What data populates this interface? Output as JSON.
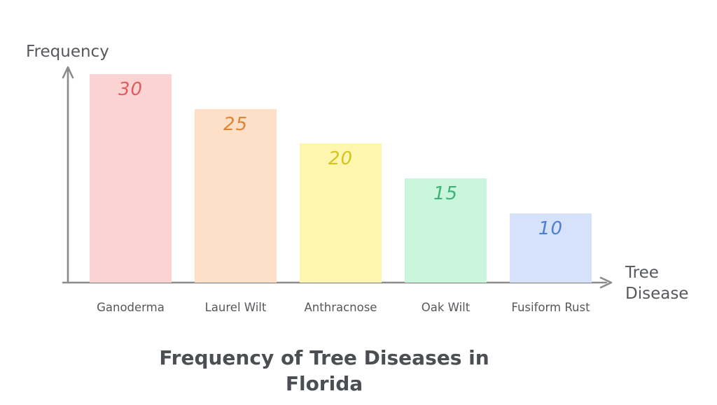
{
  "chart_data": {
    "type": "bar",
    "title": "Frequency of Tree Diseases in Florida",
    "title_lines": [
      "Frequency of Tree Diseases in",
      "Florida"
    ],
    "ylabel": "Frequency",
    "xlabel": "Tree Disease",
    "xlabel_lines": [
      "Tree",
      "Disease"
    ],
    "categories": [
      "Ganoderma",
      "Laurel Wilt",
      "Anthracnose",
      "Oak Wilt",
      "Fusiform Rust"
    ],
    "values": [
      30,
      25,
      20,
      15,
      10
    ],
    "ylim": [
      0,
      30
    ],
    "grid": false,
    "legend": "none",
    "bar_colors": [
      "#FCD3D3",
      "#FDE0C7",
      "#FDF6AF",
      "#C9F6DD",
      "#D6E2FA"
    ],
    "value_label_colors": [
      "#E05C5C",
      "#DE8435",
      "#D5C31F",
      "#3FB377",
      "#4C7ED8"
    ],
    "axis_color": "#8B8B8B",
    "label_color": "#55585C",
    "title_color": "#4B4F54"
  }
}
